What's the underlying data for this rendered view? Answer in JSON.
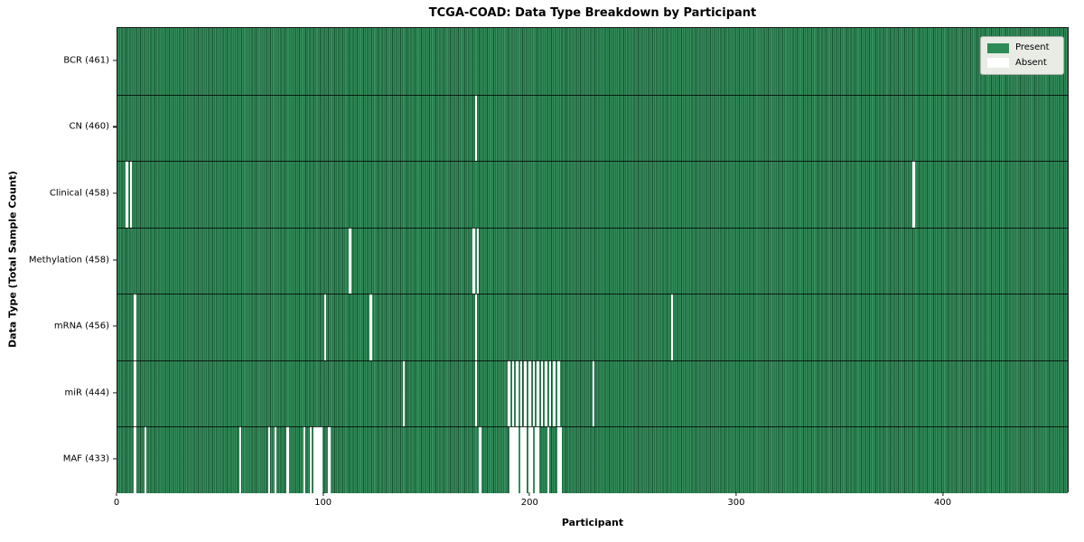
{
  "chart_data": {
    "type": "heatmap",
    "title": "TCGA-COAD: Data Type Breakdown by Participant",
    "xlabel": "Participant",
    "ylabel": "Data Type (Total Sample Count)",
    "x_range": [
      0,
      461
    ],
    "x_ticks": [
      0,
      100,
      200,
      300,
      400
    ],
    "total_participants": 461,
    "legend": [
      "Present",
      "Absent"
    ],
    "legend_position": "upper right",
    "colors": {
      "present": "#2E8B57",
      "absent": "#FFFFFF",
      "legend_bg": "#E8ECE5"
    },
    "rows": [
      {
        "label": "BCR (461)",
        "data_type": "BCR",
        "sample_count": 461,
        "absent_participants": []
      },
      {
        "label": "CN (460)",
        "data_type": "CN",
        "sample_count": 460,
        "absent_participants": [
          173
        ]
      },
      {
        "label": "Clinical (458)",
        "data_type": "Clinical",
        "sample_count": 458,
        "absent_participants": [
          4,
          6,
          385
        ]
      },
      {
        "label": "Methylation (458)",
        "data_type": "Methylation",
        "sample_count": 458,
        "absent_participants": [
          112,
          172,
          174
        ]
      },
      {
        "label": "mRNA (456)",
        "data_type": "mRNA",
        "sample_count": 456,
        "absent_participants": [
          8,
          100,
          122,
          173,
          268
        ]
      },
      {
        "label": "miR (444)",
        "data_type": "miR",
        "sample_count": 444,
        "absent_participants": [
          8,
          138,
          173,
          189,
          191,
          193,
          195,
          197,
          199,
          201,
          203,
          205,
          207,
          209,
          211,
          213,
          230
        ]
      },
      {
        "label": "MAF (433)",
        "data_type": "MAF",
        "sample_count": 433,
        "absent_participants": [
          8,
          13,
          59,
          73,
          76,
          82,
          90,
          93,
          95,
          96,
          97,
          98,
          102,
          175,
          190,
          191,
          192,
          193,
          195,
          196,
          197,
          199,
          200,
          202,
          203,
          208,
          213,
          214
        ]
      }
    ]
  }
}
